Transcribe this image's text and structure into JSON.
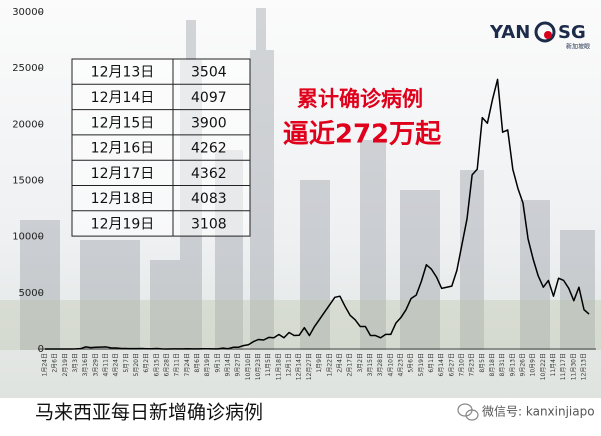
{
  "chart_data": {
    "type": "line",
    "categories": [
      "1月24日",
      null,
      "2月6日",
      null,
      "2月19日",
      null,
      "3月3日",
      null,
      "3月16日",
      null,
      "3月29日",
      null,
      "4月11日",
      null,
      "4月24日",
      null,
      "5月7日",
      null,
      "5月20日",
      null,
      "6月2日",
      null,
      "6月15日",
      null,
      "6月28日",
      null,
      "7月11日",
      null,
      "7月24日",
      null,
      "8月6日",
      null,
      "8月19日",
      null,
      "9月1日",
      null,
      "9月14日",
      null,
      "9月27日",
      null,
      "10月10日",
      null,
      "10月23日",
      null,
      "11月5日",
      null,
      "11月18日",
      null,
      "12月1日",
      null,
      "12月14日",
      null,
      "12月27日",
      null,
      "1月9日",
      null,
      "1月22日",
      null,
      "2月4日",
      null,
      "2月17日",
      null,
      "3月2日",
      null,
      "3月15日",
      null,
      "3月28日",
      null,
      "4月10日",
      null,
      "4月23日",
      null,
      "5月6日",
      null,
      "5月19日",
      null,
      "6月1日",
      null,
      "6月14日",
      null,
      "6月27日",
      null,
      "7月10日",
      null,
      "7月23日",
      null,
      "8月5日",
      null,
      "8月18日",
      null,
      "8月31日",
      null,
      "9月13日",
      null,
      "9月26日",
      null,
      "10月9日",
      null,
      "10月22日",
      null,
      "11月4日",
      null,
      "11月17日",
      null,
      "11月30日",
      null,
      "12月13日",
      null
    ],
    "series": [
      {
        "color": "#000000",
        "values": [
          0,
          0,
          2,
          0,
          0,
          0,
          7,
          30,
          190,
          120,
          150,
          170,
          184,
          100,
          88,
          50,
          39,
          30,
          31,
          40,
          20,
          20,
          41,
          10,
          5,
          10,
          7,
          10,
          20,
          10,
          15,
          20,
          20,
          10,
          7,
          80,
          24,
          150,
          150,
          300,
          374,
          660,
          847,
          800,
          1032,
          1000,
          1290,
          1000,
          1472,
          1200,
          1229,
          1900,
          1196,
          2000,
          2643,
          3300,
          3941,
          4600,
          4700,
          3800,
          3000,
          2600,
          2000,
          2000,
          1200,
          1200,
          1000,
          1300,
          1300,
          2300,
          2800,
          3500,
          4500,
          4800,
          6000,
          7500,
          7100,
          6400,
          5400,
          5500,
          5600,
          7000,
          9300,
          11600,
          15500,
          16000,
          20600,
          20100,
          22200,
          24000,
          19300,
          19500,
          16000,
          14300,
          13000,
          9800,
          8000,
          6500,
          5500,
          6100,
          4700,
          6300,
          6100,
          5400,
          4300,
          5500,
          3504,
          3108
        ]
      }
    ],
    "ylim": [
      0,
      30000
    ],
    "yticks": [
      0,
      5000,
      10000,
      15000,
      20000,
      25000,
      30000
    ],
    "annotations": [
      "累计确诊病例",
      "逼近272万起"
    ]
  },
  "table": {
    "rows": [
      [
        "12月13日",
        "3504"
      ],
      [
        "12月14日",
        "4097"
      ],
      [
        "12月15日",
        "3900"
      ],
      [
        "12月16日",
        "4262"
      ],
      [
        "12月17日",
        "4362"
      ],
      [
        "12月18日",
        "4083"
      ],
      [
        "12月19日",
        "3108"
      ]
    ]
  },
  "logo": {
    "left": "YAN",
    "right": "SG",
    "sub": "新加坡眼"
  },
  "footer": {
    "title": "马来西亚每日新增确诊病例",
    "wechat": "微信号: kanxinjiapo"
  }
}
